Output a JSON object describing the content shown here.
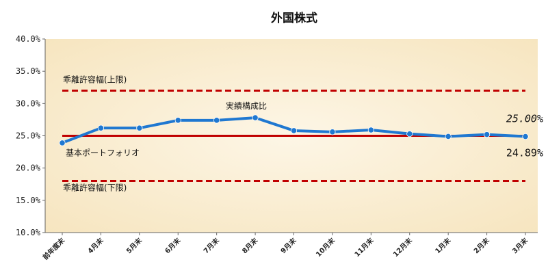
{
  "chart_data": {
    "type": "line",
    "title": "外国株式",
    "categories": [
      "前年度末",
      "4月末",
      "5月末",
      "6月末",
      "7月末",
      "8月末",
      "9月末",
      "10月末",
      "11月末",
      "12月末",
      "1月末",
      "2月末",
      "3月末"
    ],
    "series": [
      {
        "name": "実績構成比",
        "values": [
          23.9,
          26.2,
          26.2,
          27.4,
          27.4,
          27.8,
          25.8,
          25.6,
          25.9,
          25.3,
          24.9,
          25.2,
          24.89
        ],
        "color": "#1f78d1"
      }
    ],
    "reference_lines": [
      {
        "name": "乖離許容幅(上限)",
        "value": 32,
        "style": "dashed",
        "color": "#c00000"
      },
      {
        "name": "基本ポートフォリオ",
        "value": 25,
        "style": "solid",
        "color": "#c00000"
      },
      {
        "name": "乖離許容幅(下限)",
        "value": 18,
        "style": "dashed",
        "color": "#c00000"
      }
    ],
    "y_ticks": [
      "10.0%",
      "15.0%",
      "20.0%",
      "25.0%",
      "30.0%",
      "35.0%",
      "40.0%"
    ],
    "ylim": [
      10,
      40
    ],
    "target_label": "25.00%",
    "last_value_label": "24.89%",
    "grid": false,
    "legend": "none",
    "plot_background": "#fbf1d8"
  }
}
